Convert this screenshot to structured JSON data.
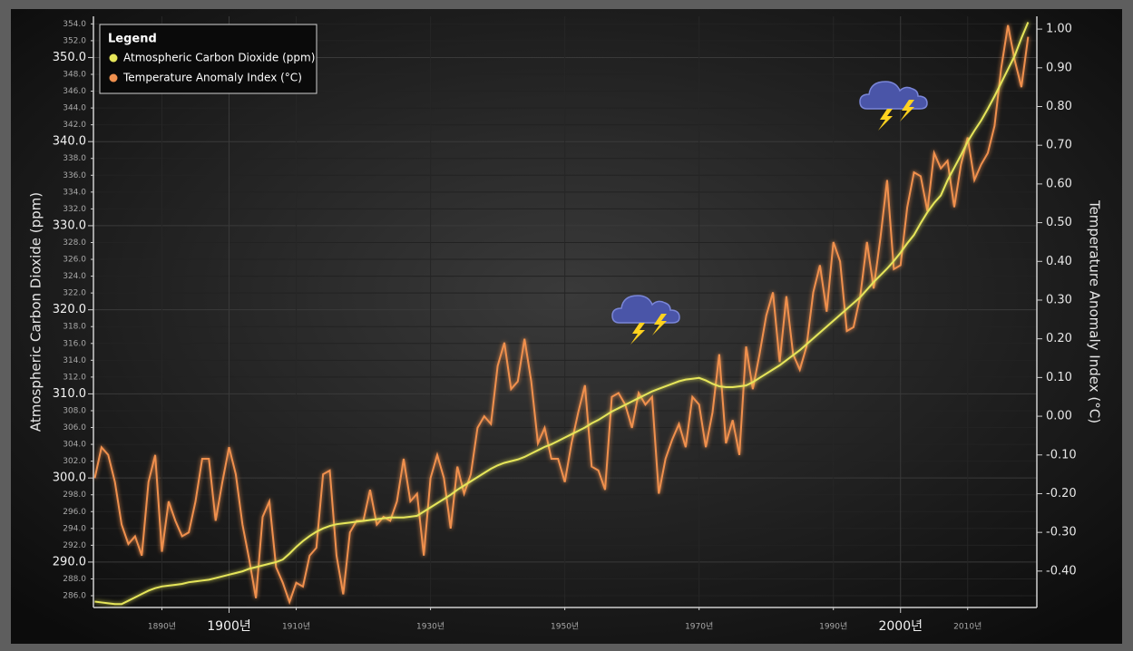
{
  "chart_data": {
    "type": "line",
    "y_axis_label": "Atmospheric Carbon Dioxide (ppm)",
    "y2_axis_label": "Temperature Anomaly Index (°C)",
    "legend_title": "Legend",
    "legend_position": "top-left",
    "grid": true,
    "x": [
      1880,
      1881,
      1882,
      1883,
      1884,
      1885,
      1886,
      1887,
      1888,
      1889,
      1890,
      1891,
      1892,
      1893,
      1894,
      1895,
      1896,
      1897,
      1898,
      1899,
      1900,
      1901,
      1902,
      1903,
      1904,
      1905,
      1906,
      1907,
      1908,
      1909,
      1910,
      1911,
      1912,
      1913,
      1914,
      1915,
      1916,
      1917,
      1918,
      1919,
      1920,
      1921,
      1922,
      1923,
      1924,
      1925,
      1926,
      1927,
      1928,
      1929,
      1930,
      1931,
      1932,
      1933,
      1934,
      1935,
      1936,
      1937,
      1938,
      1939,
      1940,
      1941,
      1942,
      1943,
      1944,
      1945,
      1946,
      1947,
      1948,
      1949,
      1950,
      1951,
      1952,
      1953,
      1954,
      1955,
      1956,
      1957,
      1958,
      1959,
      1960,
      1961,
      1962,
      1963,
      1964,
      1965,
      1966,
      1967,
      1968,
      1969,
      1970,
      1971,
      1972,
      1973,
      1974,
      1975,
      1976,
      1977,
      1978,
      1979,
      1980,
      1981,
      1982,
      1983,
      1984,
      1985,
      1986,
      1987,
      1988,
      1989,
      1990,
      1991,
      1992,
      1993,
      1994,
      1995,
      1996,
      1997,
      1998,
      1999,
      2000,
      2001,
      2002,
      2003,
      2004,
      2005,
      2006,
      2007,
      2008,
      2009,
      2010,
      2011,
      2012,
      2013,
      2014,
      2015,
      2016,
      2017,
      2018,
      2019
    ],
    "xlim": [
      1879.8,
      2020.3
    ],
    "xticks": [
      {
        "value": 1890,
        "label": "1890년"
      },
      {
        "value": 1900,
        "label": "1900년"
      },
      {
        "value": 1910,
        "label": "1910년"
      },
      {
        "value": 1930,
        "label": "1930년"
      },
      {
        "value": 1950,
        "label": "1950년"
      },
      {
        "value": 1970,
        "label": "1970년"
      },
      {
        "value": 1990,
        "label": "1990년"
      },
      {
        "value": 2000,
        "label": "2000년"
      },
      {
        "value": 2010,
        "label": "2010년"
      }
    ],
    "ylim": [
      284.6,
      354.9
    ],
    "yticks": [
      {
        "value": 286,
        "label": "286.0"
      },
      {
        "value": 288,
        "label": "288.0"
      },
      {
        "value": 290,
        "label": "290.0"
      },
      {
        "value": 292,
        "label": "292.0"
      },
      {
        "value": 294,
        "label": "294.0"
      },
      {
        "value": 296,
        "label": "296.0"
      },
      {
        "value": 298,
        "label": "298.0"
      },
      {
        "value": 300,
        "label": "300.0"
      },
      {
        "value": 302,
        "label": "302.0"
      },
      {
        "value": 304,
        "label": "304.0"
      },
      {
        "value": 306,
        "label": "306.0"
      },
      {
        "value": 308,
        "label": "308.0"
      },
      {
        "value": 310,
        "label": "310.0"
      },
      {
        "value": 312,
        "label": "312.0"
      },
      {
        "value": 314,
        "label": "314.0"
      },
      {
        "value": 316,
        "label": "316.0"
      },
      {
        "value": 318,
        "label": "318.0"
      },
      {
        "value": 320,
        "label": "320.0"
      },
      {
        "value": 322,
        "label": "322.0"
      },
      {
        "value": 324,
        "label": "324.0"
      },
      {
        "value": 326,
        "label": "326.0"
      },
      {
        "value": 328,
        "label": "328.0"
      },
      {
        "value": 330,
        "label": "330.0"
      },
      {
        "value": 332,
        "label": "332.0"
      },
      {
        "value": 334,
        "label": "334.0"
      },
      {
        "value": 336,
        "label": "336.0"
      },
      {
        "value": 338,
        "label": "338.0"
      },
      {
        "value": 340,
        "label": "340.0"
      },
      {
        "value": 342,
        "label": "342.0"
      },
      {
        "value": 344,
        "label": "344.0"
      },
      {
        "value": 346,
        "label": "346.0"
      },
      {
        "value": 348,
        "label": "348.0"
      },
      {
        "value": 350,
        "label": "350.0"
      },
      {
        "value": 352,
        "label": "352.0"
      },
      {
        "value": 354,
        "label": "354.0"
      }
    ],
    "y2lim": [
      -0.494,
      1.033
    ],
    "y2ticks": [
      {
        "value": -0.4,
        "label": "-0.40"
      },
      {
        "value": -0.3,
        "label": "-0.30"
      },
      {
        "value": -0.2,
        "label": "-0.20"
      },
      {
        "value": -0.1,
        "label": "-0.10"
      },
      {
        "value": 0,
        "label": "0.00"
      },
      {
        "value": 0.1,
        "label": "0.10"
      },
      {
        "value": 0.2,
        "label": "0.20"
      },
      {
        "value": 0.3,
        "label": "0.30"
      },
      {
        "value": 0.4,
        "label": "0.40"
      },
      {
        "value": 0.5,
        "label": "0.50"
      },
      {
        "value": 0.6,
        "label": "0.60"
      },
      {
        "value": 0.7,
        "label": "0.70"
      },
      {
        "value": 0.8,
        "label": "0.80"
      },
      {
        "value": 0.9,
        "label": "0.90"
      },
      {
        "value": 1,
        "label": "1.00"
      }
    ],
    "series": [
      {
        "name": "Atmospheric Carbon Dioxide (ppm)",
        "color": "#e6e65a",
        "values": [
          285.3,
          285.2,
          285.1,
          285.0,
          285.0,
          285.4,
          285.8,
          286.2,
          286.6,
          286.9,
          287.1,
          287.2,
          287.3,
          287.4,
          287.6,
          287.7,
          287.8,
          287.9,
          288.1,
          288.3,
          288.5,
          288.7,
          288.9,
          289.2,
          289.4,
          289.6,
          289.8,
          290.0,
          290.3,
          291.0,
          291.8,
          292.5,
          293.1,
          293.6,
          294.0,
          294.3,
          294.5,
          294.6,
          294.7,
          294.8,
          294.9,
          295.0,
          295.1,
          295.2,
          295.3,
          295.3,
          295.3,
          295.4,
          295.5,
          296.0,
          296.5,
          297.0,
          297.5,
          298.0,
          298.6,
          299.1,
          299.6,
          300.1,
          300.6,
          301.1,
          301.5,
          301.8,
          302.0,
          302.2,
          302.5,
          302.9,
          303.3,
          303.7,
          304.0,
          304.4,
          304.8,
          305.2,
          305.6,
          306.0,
          306.5,
          306.9,
          307.4,
          307.9,
          308.3,
          308.7,
          309.1,
          309.5,
          309.9,
          310.3,
          310.6,
          310.9,
          311.2,
          311.5,
          311.7,
          311.8,
          311.9,
          311.6,
          311.2,
          310.9,
          310.8,
          310.8,
          310.9,
          311.0,
          311.4,
          311.9,
          312.4,
          312.9,
          313.4,
          314.0,
          314.6,
          315.2,
          315.9,
          316.6,
          317.3,
          318.0,
          318.7,
          319.4,
          320.1,
          320.8,
          321.5,
          322.4,
          323.3,
          324.1,
          324.9,
          325.8,
          326.8,
          327.9,
          328.9,
          330.3,
          331.6,
          332.7,
          333.6,
          335.4,
          336.9,
          338.4,
          340.0,
          341.3,
          342.5,
          343.9,
          345.4,
          347.0,
          348.6,
          350.2,
          352.3,
          354.2
        ]
      },
      {
        "name": "Temperature Anomaly Index (°C)",
        "color": "#f0904e",
        "axis": "y2",
        "values": [
          -0.16,
          -0.08,
          -0.1,
          -0.17,
          -0.28,
          -0.33,
          -0.31,
          -0.36,
          -0.17,
          -0.1,
          -0.35,
          -0.22,
          -0.27,
          -0.31,
          -0.3,
          -0.22,
          -0.11,
          -0.11,
          -0.27,
          -0.17,
          -0.08,
          -0.15,
          -0.28,
          -0.37,
          -0.47,
          -0.26,
          -0.22,
          -0.39,
          -0.43,
          -0.48,
          -0.43,
          -0.44,
          -0.36,
          -0.34,
          -0.15,
          -0.14,
          -0.36,
          -0.46,
          -0.3,
          -0.27,
          -0.27,
          -0.19,
          -0.28,
          -0.26,
          -0.27,
          -0.22,
          -0.11,
          -0.22,
          -0.2,
          -0.36,
          -0.16,
          -0.1,
          -0.16,
          -0.29,
          -0.13,
          -0.2,
          -0.15,
          -0.03,
          0.0,
          -0.02,
          0.13,
          0.19,
          0.07,
          0.09,
          0.2,
          0.09,
          -0.07,
          -0.03,
          -0.11,
          -0.11,
          -0.17,
          -0.07,
          0.01,
          0.08,
          -0.13,
          -0.14,
          -0.19,
          0.05,
          0.06,
          0.03,
          -0.03,
          0.06,
          0.03,
          0.05,
          -0.2,
          -0.11,
          -0.06,
          -0.02,
          -0.08,
          0.05,
          0.03,
          -0.08,
          0.01,
          0.16,
          -0.07,
          -0.01,
          -0.1,
          0.18,
          0.07,
          0.16,
          0.26,
          0.32,
          0.14,
          0.31,
          0.16,
          0.12,
          0.18,
          0.32,
          0.39,
          0.27,
          0.45,
          0.4,
          0.22,
          0.23,
          0.31,
          0.45,
          0.33,
          0.46,
          0.61,
          0.38,
          0.39,
          0.54,
          0.63,
          0.62,
          0.53,
          0.68,
          0.64,
          0.66,
          0.54,
          0.65,
          0.72,
          0.61,
          0.65,
          0.68,
          0.75,
          0.9,
          1.01,
          0.92,
          0.85,
          0.98
        ]
      }
    ]
  }
}
